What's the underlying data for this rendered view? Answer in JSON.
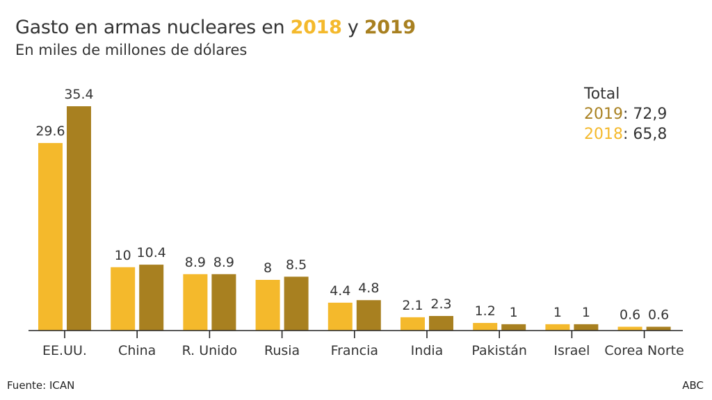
{
  "header": {
    "title_prefix": "Gasto en armas nucleares en ",
    "title_year1": "2018",
    "title_mid": " y ",
    "title_year2": "2019",
    "subtitle": "En miles de millones de dólares"
  },
  "totals": {
    "heading": "Total",
    "rows": [
      {
        "year": "2019",
        "value": ": 72,9"
      },
      {
        "year": "2018",
        "value": ": 65,8"
      }
    ]
  },
  "footer": {
    "source": "Fuente: ICAN",
    "brand": "ABC"
  },
  "colors": {
    "2018": "#f4b92c",
    "2019": "#a88020",
    "axis": "#222222",
    "text": "#333333"
  },
  "chart_data": {
    "type": "bar",
    "title": "Gasto en armas nucleares en 2018 y 2019",
    "subtitle": "En miles de millones de dólares",
    "xlabel": "",
    "ylabel": "",
    "ylim": [
      0,
      35.4
    ],
    "grid": false,
    "categories": [
      "EE.UU.",
      "China",
      "R. Unido",
      "Rusia",
      "Francia",
      "India",
      "Pakistán",
      "Israel",
      "Corea Norte"
    ],
    "series": [
      {
        "name": "2018",
        "values": [
          29.6,
          10,
          8.9,
          8,
          4.4,
          2.1,
          1.2,
          1,
          0.6
        ],
        "labels": [
          "29.6",
          "10",
          "8.9",
          "8",
          "4.4",
          "2.1",
          "1.2",
          "1",
          "0.6"
        ]
      },
      {
        "name": "2019",
        "values": [
          35.4,
          10.4,
          8.9,
          8.5,
          4.8,
          2.3,
          1,
          1,
          0.6
        ],
        "labels": [
          "35.4",
          "10.4",
          "8.9",
          "8.5",
          "4.8",
          "2.3",
          "1",
          "1",
          "0.6"
        ]
      }
    ],
    "annotations": [
      "Total",
      "2019: 72,9",
      "2018: 65,8"
    ]
  }
}
